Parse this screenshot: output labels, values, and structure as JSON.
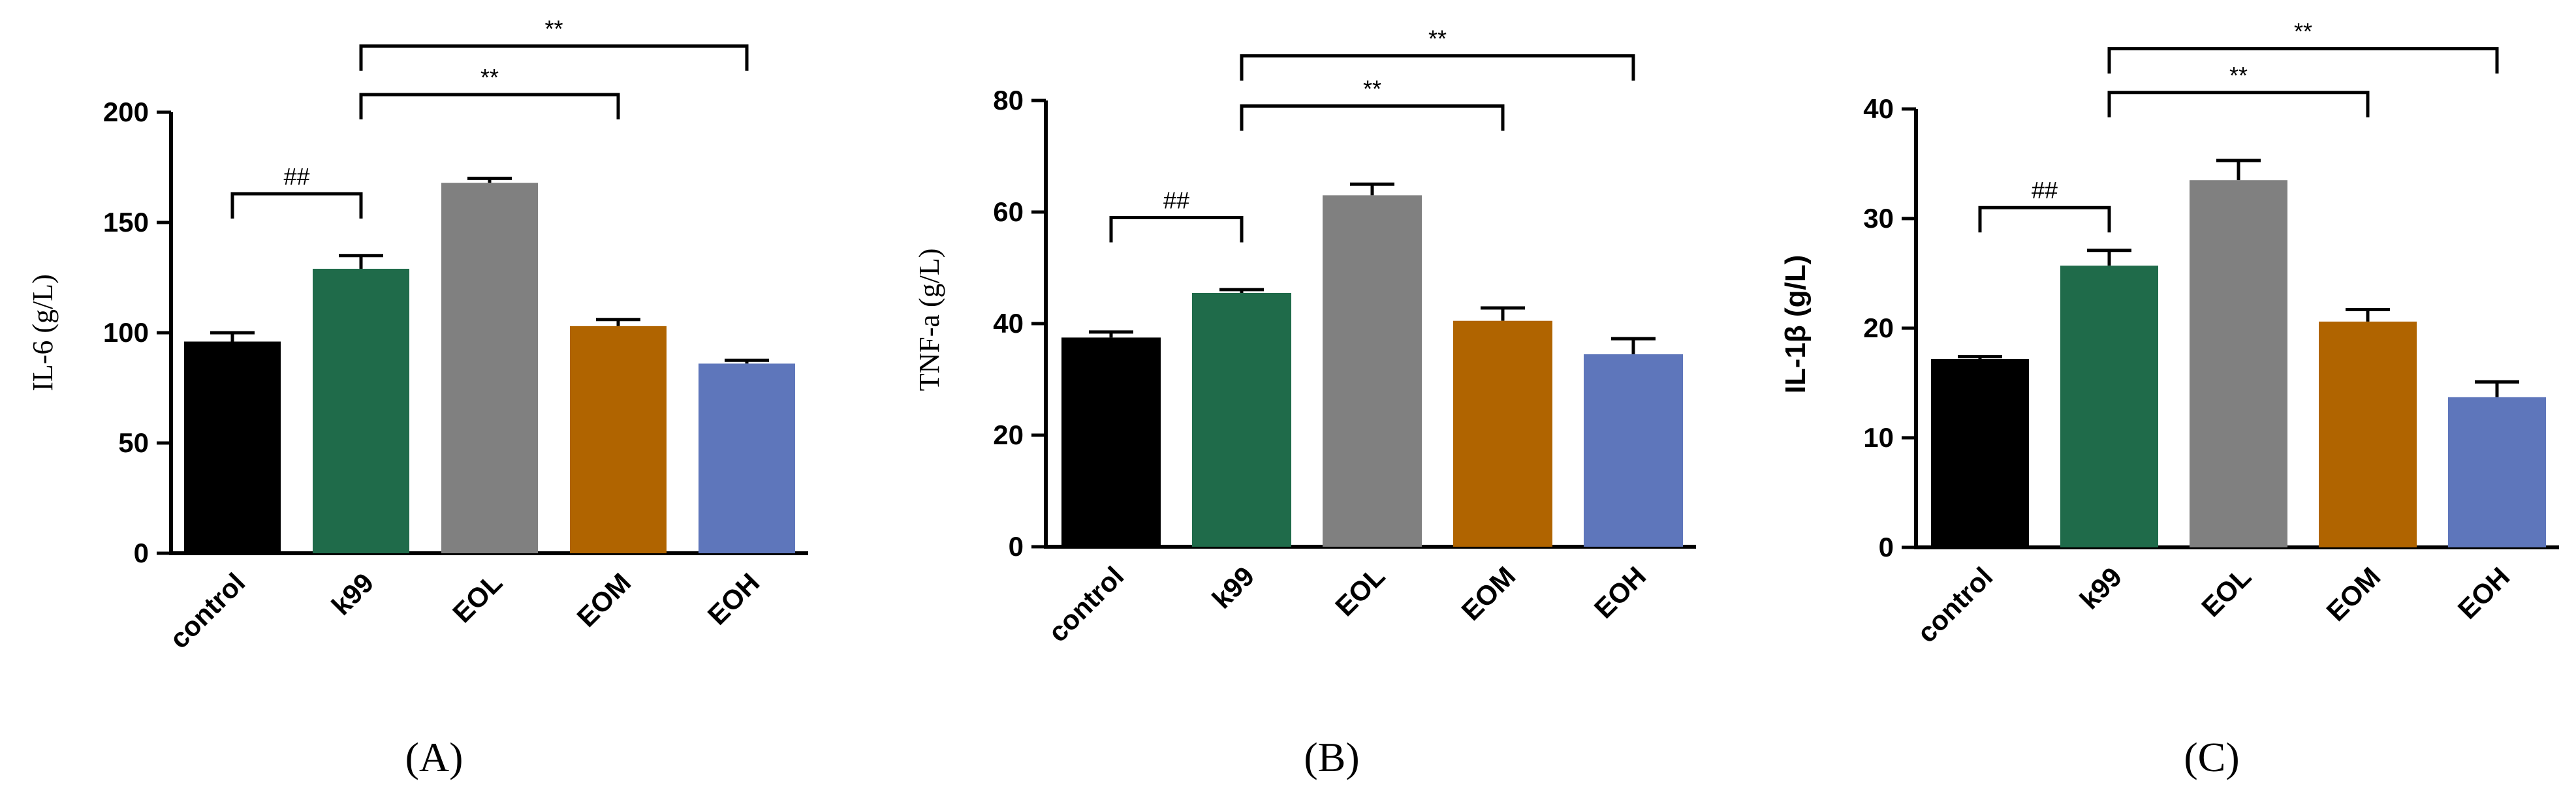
{
  "chart_data": [
    {
      "type": "bar",
      "panel_label": "(A)",
      "ylabel": "IL-6 (g/L)",
      "ylabel_style": "serif",
      "categories": [
        "control",
        "k99",
        "EOL",
        "EOM",
        "EOH"
      ],
      "values": [
        96,
        129,
        168,
        103,
        86
      ],
      "errors": [
        4,
        6,
        2,
        3,
        1.5
      ],
      "colors": [
        "#000000",
        "#1f6b4a",
        "#808080",
        "#b06400",
        "#5e76bb"
      ],
      "ylim": [
        0,
        200
      ],
      "yticks": [
        "0",
        "50",
        "100",
        "150",
        "200"
      ],
      "annotations": [
        {
          "from": "control",
          "to": "k99",
          "label": "##",
          "y": 163
        },
        {
          "from": "k99",
          "to": "EOM",
          "label": "**",
          "y": 208
        },
        {
          "from": "k99",
          "to": "EOH",
          "label": "**",
          "y": 230
        }
      ]
    },
    {
      "type": "bar",
      "panel_label": "(B)",
      "ylabel": "TNF-a (g/L)",
      "ylabel_style": "serif",
      "categories": [
        "control",
        "k99",
        "EOL",
        "EOM",
        "EOH"
      ],
      "values": [
        37.5,
        45.5,
        63,
        40.5,
        34.5
      ],
      "errors": [
        1,
        0.6,
        2,
        2.3,
        2.8
      ],
      "colors": [
        "#000000",
        "#1f6b4a",
        "#808080",
        "#b06400",
        "#5e76bb"
      ],
      "ylim": [
        0,
        80
      ],
      "yticks": [
        "0",
        "20",
        "40",
        "60",
        "80"
      ],
      "annotations": [
        {
          "from": "control",
          "to": "k99",
          "label": "##",
          "y": 59
        },
        {
          "from": "k99",
          "to": "EOM",
          "label": "**",
          "y": 79
        },
        {
          "from": "k99",
          "to": "EOH",
          "label": "**",
          "y": 88
        }
      ]
    },
    {
      "type": "bar",
      "panel_label": "(C)",
      "ylabel": "IL-1β (g/L)",
      "ylabel_style": "sans-bold",
      "categories": [
        "control",
        "k99",
        "EOL",
        "EOM",
        "EOH"
      ],
      "values": [
        17.2,
        25.7,
        33.5,
        20.6,
        13.7
      ],
      "errors": [
        0.2,
        1.4,
        1.8,
        1.1,
        1.4
      ],
      "colors": [
        "#000000",
        "#1f6b4a",
        "#808080",
        "#b06400",
        "#5e76bb"
      ],
      "ylim": [
        0,
        40
      ],
      "yticks": [
        "0",
        "10",
        "20",
        "30",
        "40"
      ],
      "annotations": [
        {
          "from": "control",
          "to": "k99",
          "label": "##",
          "y": 31
        },
        {
          "from": "k99",
          "to": "EOM",
          "label": "**",
          "y": 41.5
        },
        {
          "from": "k99",
          "to": "EOH",
          "label": "**",
          "y": 45.5
        }
      ]
    }
  ]
}
